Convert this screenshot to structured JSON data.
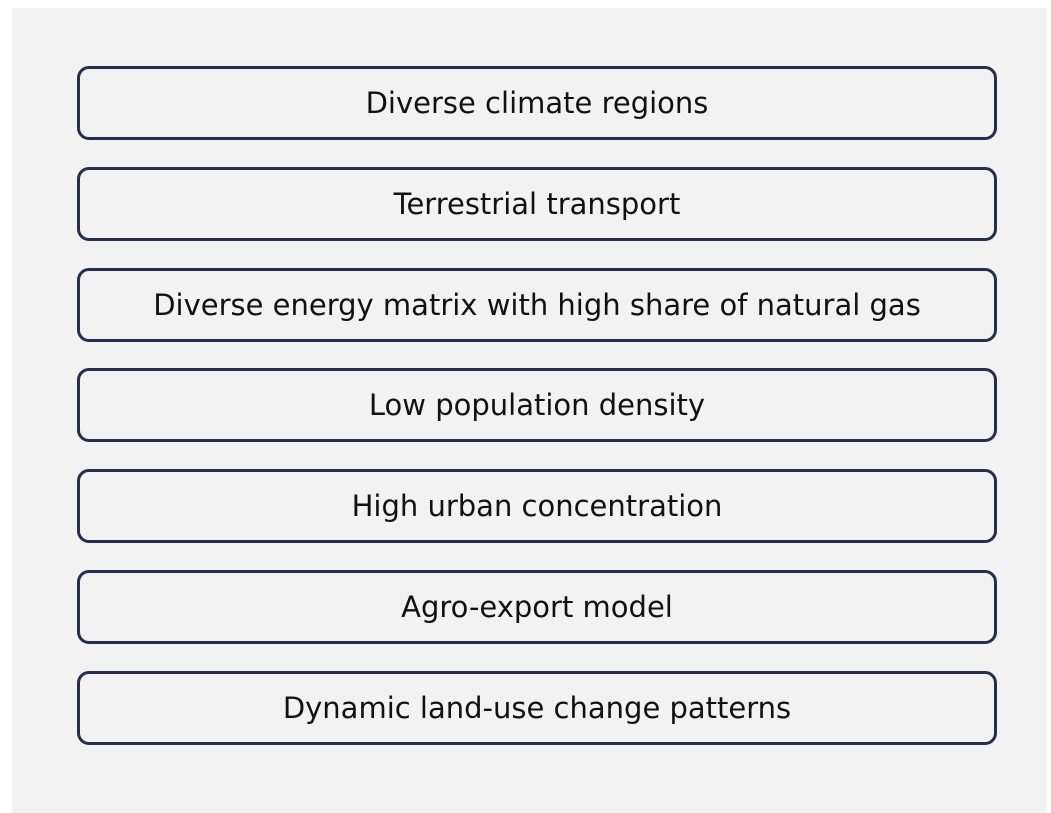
{
  "items": [
    "Diverse climate regions",
    "Terrestrial transport",
    "Diverse energy matrix with high share of natural gas",
    "Low population density",
    "High urban concentration",
    "Agro-export model",
    "Dynamic land-use change patterns"
  ]
}
